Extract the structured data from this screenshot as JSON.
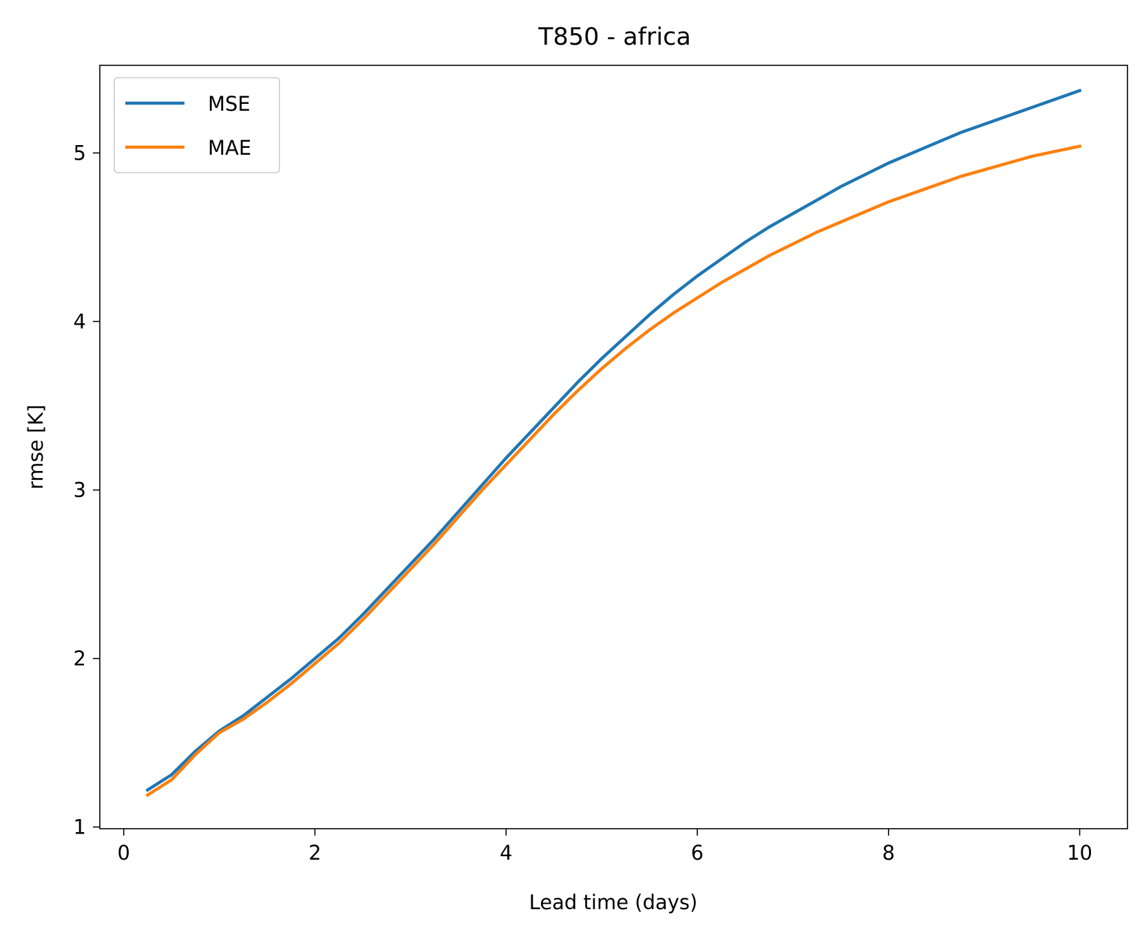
{
  "chart_data": {
    "type": "line",
    "title": "T850 - africa",
    "xlabel": "Lead time (days)",
    "ylabel": "rmse [K]",
    "xlim": [
      -0.25,
      10.5
    ],
    "ylim": [
      0.99,
      5.52
    ],
    "xticks": [
      0,
      2,
      4,
      6,
      8,
      10
    ],
    "xtick_labels": [
      "0",
      "2",
      "4",
      "6",
      "8",
      "10"
    ],
    "yticks": [
      1,
      2,
      3,
      4,
      5
    ],
    "ytick_labels": [
      "1",
      "2",
      "3",
      "4",
      "5"
    ],
    "grid": false,
    "legend_position": "upper-left",
    "x": [
      0.25,
      0.5,
      0.75,
      1.0,
      1.25,
      1.5,
      1.75,
      2.0,
      2.25,
      2.5,
      2.75,
      3.0,
      3.25,
      3.5,
      3.75,
      4.0,
      4.25,
      4.5,
      4.75,
      5.0,
      5.25,
      5.5,
      5.75,
      6.0,
      6.25,
      6.5,
      6.75,
      7.0,
      7.25,
      7.5,
      7.75,
      8.0,
      8.25,
      8.5,
      8.75,
      9.0,
      9.25,
      9.5,
      9.75,
      10.0
    ],
    "series": [
      {
        "name": "MSE",
        "color": "#1f77b4",
        "values": [
          1.22,
          1.31,
          1.45,
          1.57,
          1.66,
          1.77,
          1.88,
          2.0,
          2.12,
          2.26,
          2.41,
          2.56,
          2.71,
          2.87,
          3.03,
          3.19,
          3.34,
          3.49,
          3.64,
          3.78,
          3.91,
          4.04,
          4.16,
          4.27,
          4.37,
          4.47,
          4.56,
          4.64,
          4.72,
          4.8,
          4.87,
          4.94,
          5.0,
          5.06,
          5.12,
          5.17,
          5.22,
          5.27,
          5.32,
          5.37
        ]
      },
      {
        "name": "MAE",
        "color": "#ff7f0e",
        "values": [
          1.19,
          1.28,
          1.43,
          1.56,
          1.64,
          1.74,
          1.85,
          1.97,
          2.09,
          2.23,
          2.38,
          2.53,
          2.68,
          2.84,
          3.0,
          3.15,
          3.3,
          3.45,
          3.59,
          3.72,
          3.84,
          3.95,
          4.05,
          4.14,
          4.23,
          4.31,
          4.39,
          4.46,
          4.53,
          4.59,
          4.65,
          4.71,
          4.76,
          4.81,
          4.86,
          4.9,
          4.94,
          4.98,
          5.01,
          5.04
        ]
      }
    ]
  }
}
